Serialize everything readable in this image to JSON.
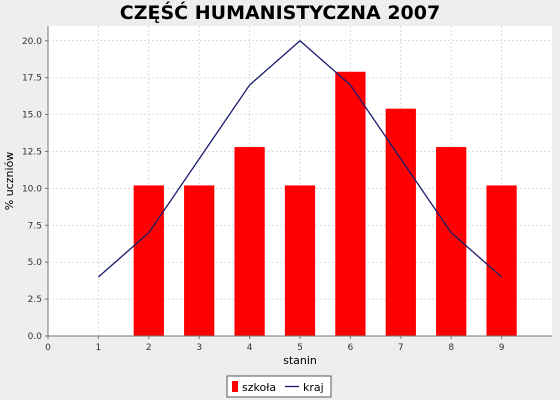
{
  "chart_data": {
    "type": "bar",
    "title": "CZĘŚĆ HUMANISTYCZNA 2007",
    "xlabel": "stanin",
    "ylabel": "% uczniów",
    "x_ticks": [
      "0",
      "1",
      "2",
      "3",
      "4",
      "5",
      "6",
      "7",
      "8",
      "9"
    ],
    "xlim": [
      0,
      10
    ],
    "ylim": [
      0,
      21
    ],
    "y_ticks": [
      "0.0",
      "2.5",
      "5.0",
      "7.5",
      "10.0",
      "12.5",
      "15.0",
      "17.5",
      "20.0"
    ],
    "grid": true,
    "legend_position": "bottom-center",
    "series": [
      {
        "name": "szkoła",
        "kind": "bar",
        "color": "#ff0000",
        "x": [
          2,
          3,
          4,
          5,
          6,
          7,
          8,
          9
        ],
        "values": [
          10.2,
          10.2,
          12.8,
          10.2,
          17.9,
          15.4,
          12.8,
          10.2
        ]
      },
      {
        "name": "kraj",
        "kind": "line",
        "color": "#1a1a6e",
        "x": [
          1,
          2,
          3,
          4,
          5,
          6,
          7,
          8,
          9
        ],
        "values": [
          4,
          7,
          12,
          17,
          20,
          17,
          12,
          7,
          4
        ]
      }
    ]
  }
}
